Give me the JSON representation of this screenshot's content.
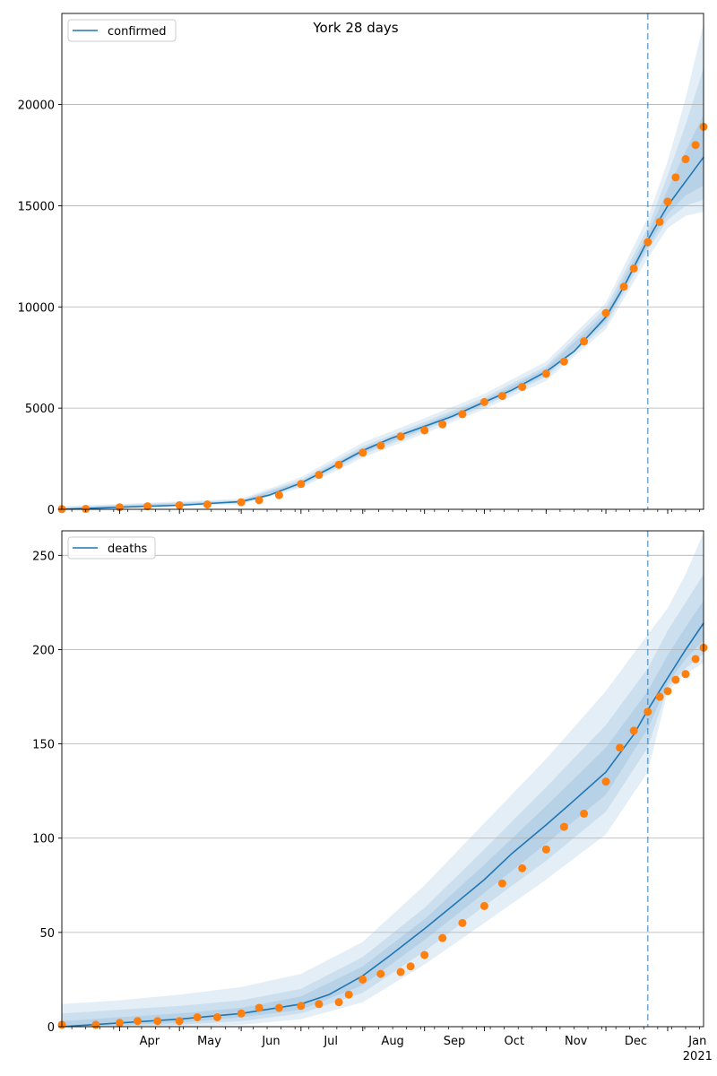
{
  "figure": {
    "title": "York 28 days"
  },
  "colors": {
    "line": "#1f77b4",
    "observed": "#ff7f0e",
    "band": "#1f77b4",
    "grid": "#b0b0b0"
  },
  "x_axis": {
    "month_ticks": [
      "Apr",
      "May",
      "Jun",
      "Jul",
      "Aug",
      "Sep",
      "Oct",
      "Nov",
      "Dec",
      "Jan"
    ],
    "year_label": "2021"
  },
  "chart_data": [
    {
      "type": "line",
      "legend": "confirmed",
      "legend_position": "top-left",
      "grid": "horizontal",
      "x_range": [
        "2020-03-03",
        "2021-01-19"
      ],
      "forecast_start": "2020-12-22",
      "ylim": [
        0,
        24500
      ],
      "y_ticks": [
        0,
        5000,
        10000,
        15000,
        20000
      ],
      "fit": {
        "x": [
          "2020-03-03",
          "2020-04-01",
          "2020-05-01",
          "2020-06-01",
          "2020-06-15",
          "2020-07-01",
          "2020-07-15",
          "2020-08-01",
          "2020-08-15",
          "2020-09-01",
          "2020-09-15",
          "2020-10-01",
          "2020-10-15",
          "2020-11-01",
          "2020-11-15",
          "2020-12-01",
          "2020-12-10",
          "2020-12-22",
          "2021-01-01",
          "2021-01-10",
          "2021-01-19"
        ],
        "y": [
          0,
          100,
          200,
          380,
          700,
          1300,
          2000,
          2900,
          3500,
          4100,
          4600,
          5300,
          5900,
          6800,
          7800,
          9500,
          11000,
          13300,
          15000,
          16200,
          17400
        ]
      },
      "bands": [
        {
          "x": [
            "2020-03-03",
            "2020-06-01",
            "2020-07-01",
            "2020-08-01",
            "2020-09-01",
            "2020-10-01",
            "2020-11-01",
            "2020-12-01",
            "2020-12-22",
            "2021-01-01",
            "2021-01-10",
            "2021-01-19"
          ],
          "lower": [
            0,
            250,
            1050,
            2550,
            3750,
            4950,
            6350,
            8900,
            12400,
            13900,
            14500,
            14700
          ],
          "upper": [
            150,
            520,
            1580,
            3300,
            4500,
            5700,
            7300,
            10200,
            14400,
            17200,
            20300,
            24000
          ]
        },
        {
          "x": [
            "2020-03-03",
            "2020-06-01",
            "2020-07-01",
            "2020-08-01",
            "2020-09-01",
            "2020-10-01",
            "2020-11-01",
            "2020-12-01",
            "2020-12-22",
            "2021-01-01",
            "2021-01-10",
            "2021-01-19"
          ],
          "lower": [
            0,
            300,
            1150,
            2700,
            3900,
            5100,
            6550,
            9100,
            12800,
            14300,
            15000,
            15300
          ],
          "upper": [
            100,
            460,
            1460,
            3120,
            4320,
            5520,
            7080,
            9950,
            13900,
            16500,
            19000,
            21800
          ]
        },
        {
          "x": [
            "2020-03-03",
            "2020-06-01",
            "2020-07-01",
            "2020-08-01",
            "2020-09-01",
            "2020-10-01",
            "2020-11-01",
            "2020-12-01",
            "2020-12-22",
            "2021-01-01",
            "2021-01-10",
            "2021-01-19"
          ],
          "lower": [
            0,
            340,
            1230,
            2800,
            4000,
            5200,
            6650,
            9300,
            13000,
            14600,
            15500,
            16000
          ],
          "upper": [
            60,
            420,
            1380,
            3000,
            4200,
            5400,
            6950,
            9700,
            13600,
            15800,
            17700,
            19500
          ]
        }
      ],
      "observed": {
        "x": [
          "2020-03-03",
          "2020-03-15",
          "2020-04-01",
          "2020-04-15",
          "2020-05-01",
          "2020-05-15",
          "2020-06-01",
          "2020-06-10",
          "2020-06-20",
          "2020-07-01",
          "2020-07-10",
          "2020-07-20",
          "2020-08-01",
          "2020-08-10",
          "2020-08-20",
          "2020-09-01",
          "2020-09-10",
          "2020-09-20",
          "2020-10-01",
          "2020-10-10",
          "2020-10-20",
          "2020-11-01",
          "2020-11-10",
          "2020-11-20",
          "2020-12-01",
          "2020-12-10",
          "2020-12-15",
          "2020-12-22",
          "2020-12-28",
          "2021-01-01",
          "2021-01-05",
          "2021-01-10",
          "2021-01-15",
          "2021-01-19"
        ],
        "y": [
          10,
          20,
          100,
          150,
          200,
          240,
          350,
          450,
          700,
          1250,
          1700,
          2200,
          2800,
          3150,
          3600,
          3900,
          4200,
          4700,
          5300,
          5600,
          6050,
          6700,
          7300,
          8300,
          9700,
          11000,
          11900,
          13200,
          14200,
          15200,
          16400,
          17300,
          18000,
          18900
        ]
      }
    },
    {
      "type": "line",
      "legend": "deaths",
      "legend_position": "top-left",
      "grid": "horizontal",
      "x_range": [
        "2020-03-03",
        "2021-01-19"
      ],
      "forecast_start": "2020-12-22",
      "ylim": [
        0,
        263
      ],
      "y_ticks": [
        0,
        50,
        100,
        150,
        200,
        250
      ],
      "fit": {
        "x": [
          "2020-03-03",
          "2020-04-01",
          "2020-05-01",
          "2020-06-01",
          "2020-07-01",
          "2020-07-15",
          "2020-08-01",
          "2020-08-15",
          "2020-09-01",
          "2020-09-15",
          "2020-10-01",
          "2020-10-15",
          "2020-11-01",
          "2020-11-15",
          "2020-12-01",
          "2020-12-15",
          "2020-12-22",
          "2021-01-01",
          "2021-01-10",
          "2021-01-19"
        ],
        "y": [
          0,
          2,
          4,
          7,
          12,
          17,
          27,
          38,
          52,
          64,
          78,
          92,
          107,
          120,
          135,
          155,
          168,
          185,
          200,
          214
        ]
      },
      "bands": [
        {
          "x": [
            "2020-03-03",
            "2020-04-01",
            "2020-05-01",
            "2020-06-01",
            "2020-07-01",
            "2020-08-01",
            "2020-09-01",
            "2020-10-01",
            "2020-11-01",
            "2020-12-01",
            "2020-12-22",
            "2021-01-01",
            "2021-01-10",
            "2021-01-19"
          ],
          "lower": [
            0,
            0,
            0,
            1,
            4,
            13,
            33,
            55,
            78,
            102,
            135,
            178,
            187,
            193
          ],
          "upper": [
            12,
            14,
            17,
            21,
            28,
            45,
            75,
            108,
            142,
            178,
            208,
            222,
            240,
            262
          ]
        },
        {
          "x": [
            "2020-03-03",
            "2020-04-01",
            "2020-05-01",
            "2020-06-01",
            "2020-07-01",
            "2020-08-01",
            "2020-09-01",
            "2020-10-01",
            "2020-11-01",
            "2020-12-01",
            "2020-12-22",
            "2021-01-01",
            "2021-01-10",
            "2021-01-19"
          ],
          "lower": [
            0,
            0,
            1,
            3,
            7,
            18,
            40,
            64,
            88,
            114,
            148,
            180,
            190,
            198
          ],
          "upper": [
            7,
            9,
            11,
            14,
            20,
            37,
            63,
            94,
            127,
            160,
            190,
            210,
            225,
            240
          ]
        },
        {
          "x": [
            "2020-03-03",
            "2020-04-01",
            "2020-05-01",
            "2020-06-01",
            "2020-07-01",
            "2020-08-01",
            "2020-09-01",
            "2020-10-01",
            "2020-11-01",
            "2020-12-01",
            "2020-12-22",
            "2021-01-01",
            "2021-01-10",
            "2021-01-19"
          ],
          "lower": [
            0,
            1,
            2,
            5,
            9,
            22,
            46,
            71,
            97,
            123,
            158,
            182,
            195,
            205
          ],
          "upper": [
            3,
            5,
            7,
            10,
            16,
            32,
            57,
            86,
            117,
            148,
            178,
            197,
            212,
            226
          ]
        }
      ],
      "observed": {
        "x": [
          "2020-03-03",
          "2020-03-20",
          "2020-04-01",
          "2020-04-10",
          "2020-04-20",
          "2020-05-01",
          "2020-05-10",
          "2020-05-20",
          "2020-06-01",
          "2020-06-10",
          "2020-06-20",
          "2020-07-01",
          "2020-07-10",
          "2020-07-20",
          "2020-07-25",
          "2020-08-01",
          "2020-08-10",
          "2020-08-20",
          "2020-08-25",
          "2020-09-01",
          "2020-09-10",
          "2020-09-20",
          "2020-10-01",
          "2020-10-10",
          "2020-10-20",
          "2020-11-01",
          "2020-11-10",
          "2020-11-20",
          "2020-12-01",
          "2020-12-08",
          "2020-12-15",
          "2020-12-22",
          "2020-12-28",
          "2021-01-01",
          "2021-01-05",
          "2021-01-10",
          "2021-01-15",
          "2021-01-19"
        ],
        "y": [
          1,
          1,
          2,
          3,
          3,
          3,
          5,
          5,
          7,
          10,
          10,
          11,
          12,
          13,
          17,
          25,
          28,
          29,
          32,
          38,
          47,
          55,
          64,
          76,
          84,
          94,
          106,
          113,
          130,
          148,
          157,
          167,
          175,
          178,
          184,
          187,
          195,
          201
        ]
      }
    }
  ]
}
